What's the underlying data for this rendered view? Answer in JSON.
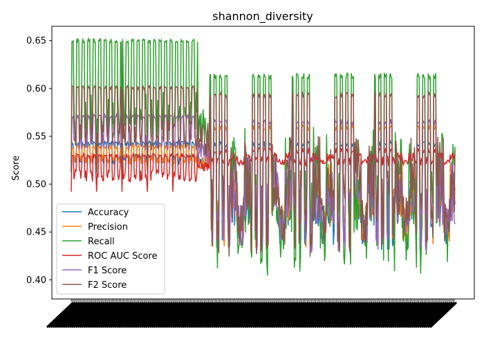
{
  "chart_data": {
    "type": "line",
    "title": "shannon_diversity",
    "xlabel": "",
    "ylabel": "Score",
    "ylim": [
      0.38,
      0.665
    ],
    "yticks": [
      0.4,
      0.45,
      0.5,
      0.55,
      0.6,
      0.65
    ],
    "ytick_labels": [
      "0.40",
      "0.45",
      "0.50",
      "0.55",
      "0.60",
      "0.65"
    ],
    "n_points": 560,
    "grid": false,
    "legend_position": "lower-left",
    "series": [
      {
        "name": "Accuracy",
        "color": "#1f77b4",
        "high": [
          0.545,
          0.545,
          0.545
        ],
        "low": [
          0.512,
          0.5,
          0.425
        ]
      },
      {
        "name": "Precision",
        "color": "#ff7f0e",
        "high": [
          0.541,
          0.541,
          0.562
        ],
        "low": [
          0.515,
          0.505,
          0.425
        ]
      },
      {
        "name": "Recall",
        "color": "#2ca02c",
        "high": [
          0.652,
          0.616,
          0.616
        ],
        "low": [
          0.513,
          0.498,
          0.393
        ]
      },
      {
        "name": "ROC AUC Score",
        "color": "#d62728",
        "high": [
          0.532,
          0.532,
          0.538
        ],
        "low": [
          0.492,
          0.505,
          0.518
        ]
      },
      {
        "name": "F1 Score",
        "color": "#9467bd",
        "high": [
          0.573,
          0.568,
          0.568
        ],
        "low": [
          0.522,
          0.5,
          0.42
        ]
      },
      {
        "name": "F2 Score",
        "color": "#8c564b",
        "high": [
          0.603,
          0.596,
          0.596
        ],
        "low": [
          0.513,
          0.498,
          0.415
        ]
      }
    ]
  }
}
